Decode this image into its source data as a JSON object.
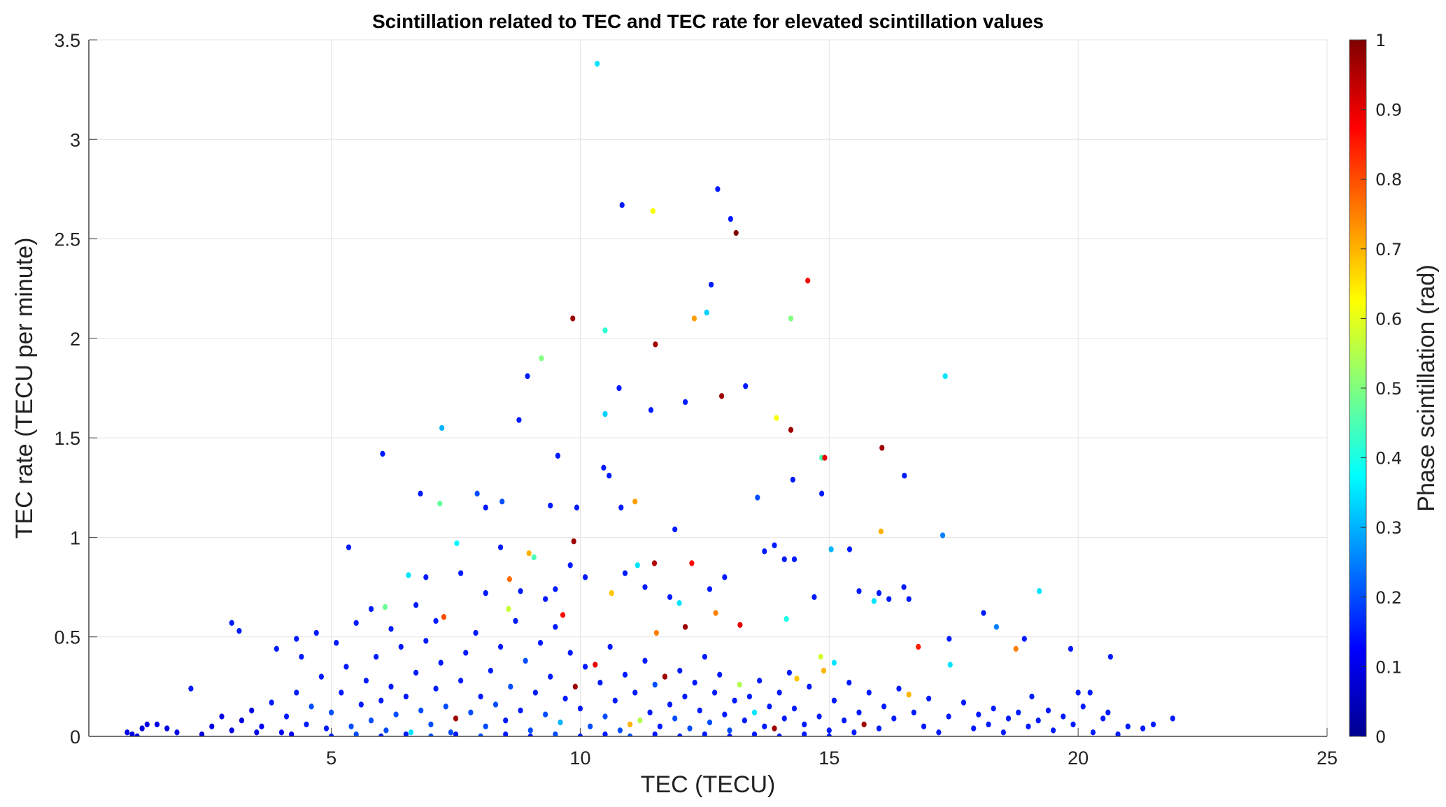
{
  "chart_data": {
    "type": "scatter",
    "title": "Scintillation related to TEC and TEC rate for elevated scintillation values",
    "xlabel": "TEC (TECU)",
    "ylabel": "TEC  rate (TECU per minute)",
    "xlim": [
      0.13,
      25
    ],
    "ylim": [
      0,
      3.5
    ],
    "xticks": [
      "5",
      "10",
      "15",
      "20",
      "25"
    ],
    "yticks": [
      "0",
      "0.5",
      "1",
      "1.5",
      "2",
      "2.5",
      "3",
      "3.5"
    ],
    "grid": true,
    "colorbar": {
      "label": "Phase scintillation (rad)",
      "colormap": "jet",
      "range": [
        0,
        1
      ],
      "ticks": [
        "0",
        "0.1",
        "0.2",
        "0.3",
        "0.4",
        "0.5",
        "0.6",
        "0.7",
        "0.8",
        "0.9",
        "1"
      ],
      "position": "right"
    },
    "point_format": [
      "TEC",
      "TEC rate",
      "phase scintillation"
    ],
    "points": [
      [
        10.34,
        3.38,
        0.35
      ],
      [
        10.84,
        2.67,
        0.15
      ],
      [
        11.46,
        2.64,
        0.62
      ],
      [
        12.76,
        2.75,
        0.15
      ],
      [
        13.02,
        2.6,
        0.15
      ],
      [
        13.13,
        2.53,
        1.0
      ],
      [
        12.63,
        2.27,
        0.15
      ],
      [
        14.57,
        2.29,
        0.88
      ],
      [
        9.85,
        2.1,
        0.97
      ],
      [
        10.5,
        2.04,
        0.42
      ],
      [
        12.29,
        2.1,
        0.72
      ],
      [
        12.54,
        2.13,
        0.33
      ],
      [
        14.23,
        2.1,
        0.5
      ],
      [
        11.51,
        1.97,
        0.97
      ],
      [
        9.22,
        1.9,
        0.5
      ],
      [
        8.94,
        1.81,
        0.15
      ],
      [
        17.33,
        1.81,
        0.35
      ],
      [
        10.78,
        1.75,
        0.15
      ],
      [
        13.32,
        1.76,
        0.15
      ],
      [
        12.84,
        1.71,
        0.97
      ],
      [
        12.11,
        1.68,
        0.15
      ],
      [
        11.42,
        1.64,
        0.15
      ],
      [
        10.5,
        1.62,
        0.33
      ],
      [
        13.94,
        1.6,
        0.62
      ],
      [
        8.77,
        1.59,
        0.15
      ],
      [
        7.22,
        1.55,
        0.3
      ],
      [
        14.23,
        1.54,
        0.97
      ],
      [
        16.06,
        1.45,
        0.97
      ],
      [
        6.03,
        1.42,
        0.15
      ],
      [
        9.55,
        1.41,
        0.15
      ],
      [
        14.91,
        1.4,
        0.9
      ],
      [
        14.85,
        1.4,
        0.45
      ],
      [
        10.47,
        1.35,
        0.15
      ],
      [
        16.51,
        1.31,
        0.15
      ],
      [
        10.58,
        1.31,
        0.15
      ],
      [
        14.27,
        1.29,
        0.15
      ],
      [
        6.79,
        1.22,
        0.15
      ],
      [
        7.93,
        1.22,
        0.2
      ],
      [
        14.85,
        1.22,
        0.15
      ],
      [
        11.1,
        1.18,
        0.72
      ],
      [
        8.43,
        1.18,
        0.2
      ],
      [
        7.18,
        1.17,
        0.47
      ],
      [
        9.4,
        1.16,
        0.15
      ],
      [
        9.93,
        1.15,
        0.15
      ],
      [
        10.82,
        1.15,
        0.15
      ],
      [
        8.1,
        1.15,
        0.15
      ],
      [
        13.56,
        1.2,
        0.2
      ],
      [
        16.04,
        1.03,
        0.7
      ],
      [
        11.9,
        1.04,
        0.15
      ],
      [
        17.28,
        1.01,
        0.25
      ],
      [
        9.87,
        0.98,
        0.97
      ],
      [
        7.52,
        0.97,
        0.37
      ],
      [
        5.35,
        0.95,
        0.15
      ],
      [
        15.04,
        0.94,
        0.3
      ],
      [
        15.41,
        0.94,
        0.15
      ],
      [
        8.97,
        0.92,
        0.7
      ],
      [
        9.07,
        0.9,
        0.45
      ],
      [
        11.49,
        0.87,
        0.95
      ],
      [
        12.24,
        0.87,
        0.87
      ],
      [
        11.15,
        0.86,
        0.35
      ],
      [
        6.55,
        0.81,
        0.35
      ],
      [
        8.58,
        0.79,
        0.77
      ],
      [
        10.63,
        0.72,
        0.68
      ],
      [
        19.22,
        0.73,
        0.35
      ],
      [
        8.56,
        0.64,
        0.57
      ],
      [
        6.08,
        0.65,
        0.48
      ],
      [
        7.26,
        0.6,
        0.8
      ],
      [
        9.65,
        0.61,
        0.87
      ],
      [
        12.72,
        0.62,
        0.75
      ],
      [
        11.99,
        0.67,
        0.35
      ],
      [
        14.14,
        0.59,
        0.4
      ],
      [
        12.11,
        0.55,
        0.97
      ],
      [
        13.21,
        0.56,
        0.9
      ],
      [
        18.36,
        0.55,
        0.25
      ],
      [
        11.53,
        0.52,
        0.75
      ],
      [
        16.79,
        0.45,
        0.85
      ],
      [
        18.75,
        0.44,
        0.75
      ],
      [
        19.85,
        0.44,
        0.15
      ],
      [
        20.65,
        0.4,
        0.15
      ],
      [
        14.83,
        0.4,
        0.58
      ],
      [
        3.0,
        0.57,
        0.15
      ],
      [
        3.15,
        0.53,
        0.15
      ],
      [
        18.1,
        0.62,
        0.15
      ],
      [
        17.41,
        0.49,
        0.15
      ],
      [
        18.92,
        0.49,
        0.15
      ],
      [
        21.9,
        0.09,
        0.15
      ],
      [
        2.18,
        0.24,
        0.15
      ],
      [
        21.51,
        0.06,
        0.15
      ],
      [
        15.1,
        0.37,
        0.35
      ],
      [
        17.43,
        0.36,
        0.35
      ],
      [
        14.89,
        0.33,
        0.7
      ],
      [
        14.35,
        0.29,
        0.68
      ],
      [
        20.0,
        0.22,
        0.15
      ],
      [
        20.24,
        0.22,
        0.15
      ],
      [
        19.07,
        0.2,
        0.15
      ],
      [
        9.8,
        0.86,
        0.15
      ],
      [
        10.1,
        0.8,
        0.15
      ],
      [
        8.4,
        0.95,
        0.15
      ],
      [
        7.6,
        0.82,
        0.15
      ],
      [
        6.9,
        0.8,
        0.15
      ],
      [
        12.9,
        0.8,
        0.15
      ],
      [
        13.7,
        0.93,
        0.15
      ],
      [
        13.9,
        0.96,
        0.15
      ],
      [
        14.1,
        0.89,
        0.15
      ],
      [
        14.3,
        0.89,
        0.15
      ],
      [
        12.6,
        0.74,
        0.15
      ],
      [
        11.8,
        0.7,
        0.15
      ],
      [
        11.3,
        0.75,
        0.15
      ],
      [
        10.9,
        0.82,
        0.15
      ],
      [
        15.6,
        0.73,
        0.15
      ],
      [
        16.2,
        0.69,
        0.15
      ],
      [
        16.5,
        0.75,
        0.15
      ],
      [
        15.9,
        0.68,
        0.35
      ],
      [
        16.0,
        0.72,
        0.15
      ],
      [
        16.6,
        0.69,
        0.15
      ],
      [
        14.7,
        0.7,
        0.15
      ],
      [
        5.8,
        0.64,
        0.15
      ],
      [
        6.7,
        0.66,
        0.15
      ],
      [
        7.1,
        0.58,
        0.15
      ],
      [
        8.1,
        0.72,
        0.15
      ],
      [
        8.8,
        0.73,
        0.15
      ],
      [
        9.3,
        0.69,
        0.15
      ],
      [
        9.5,
        0.74,
        0.15
      ],
      [
        4.7,
        0.52,
        0.15
      ],
      [
        5.5,
        0.57,
        0.15
      ],
      [
        4.3,
        0.49,
        0.15
      ],
      [
        3.9,
        0.44,
        0.15
      ],
      [
        4.4,
        0.4,
        0.15
      ],
      [
        5.1,
        0.47,
        0.15
      ],
      [
        6.2,
        0.54,
        0.15
      ],
      [
        0.9,
        0.02,
        0.1
      ],
      [
        1.0,
        0.01,
        0.1
      ],
      [
        1.2,
        0.04,
        0.1
      ],
      [
        1.3,
        0.06,
        0.1
      ],
      [
        1.5,
        0.06,
        0.1
      ],
      [
        1.7,
        0.04,
        0.1
      ],
      [
        1.9,
        0.02,
        0.1
      ],
      [
        1.1,
        0.0,
        0.1
      ],
      [
        2.4,
        0.01,
        0.1
      ],
      [
        2.6,
        0.05,
        0.1
      ],
      [
        2.8,
        0.1,
        0.1
      ],
      [
        3.0,
        0.03,
        0.1
      ],
      [
        3.2,
        0.08,
        0.1
      ],
      [
        3.4,
        0.13,
        0.1
      ],
      [
        3.6,
        0.05,
        0.12
      ],
      [
        3.8,
        0.17,
        0.15
      ],
      [
        4.0,
        0.02,
        0.12
      ],
      [
        4.1,
        0.1,
        0.15
      ],
      [
        4.3,
        0.22,
        0.15
      ],
      [
        4.5,
        0.06,
        0.15
      ],
      [
        4.6,
        0.15,
        0.2
      ],
      [
        4.8,
        0.3,
        0.15
      ],
      [
        4.9,
        0.04,
        0.15
      ],
      [
        5.0,
        0.12,
        0.2
      ],
      [
        5.2,
        0.22,
        0.15
      ],
      [
        5.3,
        0.35,
        0.15
      ],
      [
        5.4,
        0.05,
        0.2
      ],
      [
        5.6,
        0.16,
        0.15
      ],
      [
        5.7,
        0.28,
        0.15
      ],
      [
        5.8,
        0.08,
        0.2
      ],
      [
        5.9,
        0.4,
        0.15
      ],
      [
        6.0,
        0.18,
        0.15
      ],
      [
        6.1,
        0.03,
        0.2
      ],
      [
        6.2,
        0.25,
        0.15
      ],
      [
        6.3,
        0.11,
        0.2
      ],
      [
        6.4,
        0.45,
        0.15
      ],
      [
        6.5,
        0.2,
        0.15
      ],
      [
        6.6,
        0.02,
        0.35
      ],
      [
        6.7,
        0.32,
        0.15
      ],
      [
        6.8,
        0.13,
        0.2
      ],
      [
        6.9,
        0.48,
        0.15
      ],
      [
        7.0,
        0.06,
        0.2
      ],
      [
        7.1,
        0.24,
        0.15
      ],
      [
        7.2,
        0.37,
        0.15
      ],
      [
        7.3,
        0.15,
        0.2
      ],
      [
        7.4,
        0.02,
        0.2
      ],
      [
        7.5,
        0.09,
        0.97
      ],
      [
        7.6,
        0.28,
        0.15
      ],
      [
        7.7,
        0.42,
        0.15
      ],
      [
        7.8,
        0.12,
        0.2
      ],
      [
        7.9,
        0.52,
        0.15
      ],
      [
        8.0,
        0.2,
        0.15
      ],
      [
        8.1,
        0.05,
        0.2
      ],
      [
        8.2,
        0.33,
        0.15
      ],
      [
        8.3,
        0.16,
        0.2
      ],
      [
        8.4,
        0.45,
        0.15
      ],
      [
        8.5,
        0.08,
        0.15
      ],
      [
        8.6,
        0.25,
        0.2
      ],
      [
        8.7,
        0.58,
        0.15
      ],
      [
        8.8,
        0.13,
        0.15
      ],
      [
        8.9,
        0.38,
        0.2
      ],
      [
        9.0,
        0.03,
        0.2
      ],
      [
        9.1,
        0.22,
        0.15
      ],
      [
        9.2,
        0.47,
        0.15
      ],
      [
        9.3,
        0.11,
        0.2
      ],
      [
        9.4,
        0.3,
        0.15
      ],
      [
        9.5,
        0.55,
        0.15
      ],
      [
        9.6,
        0.07,
        0.3
      ],
      [
        9.7,
        0.19,
        0.15
      ],
      [
        9.8,
        0.42,
        0.15
      ],
      [
        9.9,
        0.25,
        0.97
      ],
      [
        10.0,
        0.14,
        0.15
      ],
      [
        10.1,
        0.35,
        0.15
      ],
      [
        10.2,
        0.05,
        0.2
      ],
      [
        10.3,
        0.36,
        0.9
      ],
      [
        10.4,
        0.27,
        0.15
      ],
      [
        10.5,
        0.1,
        0.2
      ],
      [
        10.6,
        0.45,
        0.15
      ],
      [
        10.7,
        0.18,
        0.15
      ],
      [
        10.8,
        0.03,
        0.2
      ],
      [
        10.9,
        0.31,
        0.15
      ],
      [
        11.0,
        0.06,
        0.7
      ],
      [
        11.1,
        0.22,
        0.15
      ],
      [
        11.2,
        0.08,
        0.55
      ],
      [
        11.3,
        0.38,
        0.15
      ],
      [
        11.4,
        0.12,
        0.15
      ],
      [
        11.5,
        0.26,
        0.2
      ],
      [
        11.6,
        0.05,
        0.15
      ],
      [
        11.7,
        0.3,
        0.97
      ],
      [
        11.8,
        0.16,
        0.15
      ],
      [
        11.9,
        0.09,
        0.2
      ],
      [
        12.0,
        0.33,
        0.15
      ],
      [
        12.1,
        0.2,
        0.15
      ],
      [
        12.2,
        0.04,
        0.2
      ],
      [
        12.3,
        0.27,
        0.15
      ],
      [
        12.4,
        0.13,
        0.15
      ],
      [
        12.5,
        0.4,
        0.15
      ],
      [
        12.6,
        0.07,
        0.2
      ],
      [
        12.7,
        0.22,
        0.15
      ],
      [
        12.8,
        0.31,
        0.15
      ],
      [
        12.9,
        0.11,
        0.15
      ],
      [
        13.0,
        0.03,
        0.2
      ],
      [
        13.1,
        0.18,
        0.15
      ],
      [
        13.2,
        0.26,
        0.55
      ],
      [
        13.3,
        0.08,
        0.15
      ],
      [
        13.4,
        0.2,
        0.15
      ],
      [
        13.5,
        0.12,
        0.35
      ],
      [
        13.6,
        0.28,
        0.15
      ],
      [
        13.7,
        0.05,
        0.15
      ],
      [
        13.8,
        0.15,
        0.15
      ],
      [
        13.9,
        0.04,
        0.97
      ],
      [
        14.0,
        0.22,
        0.15
      ],
      [
        14.1,
        0.09,
        0.15
      ],
      [
        14.2,
        0.32,
        0.15
      ],
      [
        14.3,
        0.14,
        0.15
      ],
      [
        14.5,
        0.06,
        0.15
      ],
      [
        14.6,
        0.25,
        0.15
      ],
      [
        14.8,
        0.1,
        0.15
      ],
      [
        15.0,
        0.03,
        0.15
      ],
      [
        15.1,
        0.18,
        0.15
      ],
      [
        15.3,
        0.08,
        0.15
      ],
      [
        15.4,
        0.27,
        0.15
      ],
      [
        15.6,
        0.12,
        0.15
      ],
      [
        15.7,
        0.06,
        0.97
      ],
      [
        15.8,
        0.22,
        0.15
      ],
      [
        16.0,
        0.04,
        0.15
      ],
      [
        16.1,
        0.15,
        0.15
      ],
      [
        16.3,
        0.09,
        0.15
      ],
      [
        16.4,
        0.24,
        0.15
      ],
      [
        16.6,
        0.21,
        0.7
      ],
      [
        16.7,
        0.12,
        0.15
      ],
      [
        16.9,
        0.05,
        0.15
      ],
      [
        17.0,
        0.19,
        0.15
      ],
      [
        17.2,
        0.02,
        0.15
      ],
      [
        17.4,
        0.1,
        0.15
      ],
      [
        17.7,
        0.17,
        0.15
      ],
      [
        17.9,
        0.04,
        0.15
      ],
      [
        18.0,
        0.11,
        0.15
      ],
      [
        18.2,
        0.06,
        0.15
      ],
      [
        18.3,
        0.14,
        0.15
      ],
      [
        18.5,
        0.02,
        0.15
      ],
      [
        18.6,
        0.09,
        0.15
      ],
      [
        18.8,
        0.12,
        0.15
      ],
      [
        19.0,
        0.05,
        0.15
      ],
      [
        19.2,
        0.08,
        0.15
      ],
      [
        19.4,
        0.13,
        0.15
      ],
      [
        19.5,
        0.03,
        0.15
      ],
      [
        19.7,
        0.1,
        0.15
      ],
      [
        19.9,
        0.06,
        0.15
      ],
      [
        20.1,
        0.15,
        0.15
      ],
      [
        20.3,
        0.02,
        0.15
      ],
      [
        20.5,
        0.09,
        0.15
      ],
      [
        20.6,
        0.12,
        0.15
      ],
      [
        20.8,
        0.01,
        0.15
      ],
      [
        21.0,
        0.05,
        0.15
      ],
      [
        21.3,
        0.04,
        0.15
      ],
      [
        3.5,
        0.02,
        0.1
      ],
      [
        4.2,
        0.01,
        0.12
      ],
      [
        5.0,
        0.0,
        0.15
      ],
      [
        5.5,
        0.01,
        0.2
      ],
      [
        6.0,
        0.0,
        0.15
      ],
      [
        6.5,
        0.01,
        0.15
      ],
      [
        7.0,
        0.0,
        0.2
      ],
      [
        7.5,
        0.01,
        0.15
      ],
      [
        8.0,
        0.0,
        0.2
      ],
      [
        8.5,
        0.01,
        0.15
      ],
      [
        9.0,
        0.0,
        0.15
      ],
      [
        9.5,
        0.01,
        0.2
      ],
      [
        10.0,
        0.0,
        0.15
      ],
      [
        10.5,
        0.01,
        0.15
      ],
      [
        11.0,
        0.0,
        0.2
      ],
      [
        11.5,
        0.01,
        0.15
      ],
      [
        12.0,
        0.0,
        0.15
      ],
      [
        12.5,
        0.01,
        0.15
      ],
      [
        13.0,
        0.0,
        0.15
      ],
      [
        13.5,
        0.01,
        0.15
      ],
      [
        14.0,
        0.0,
        0.15
      ],
      [
        14.5,
        0.01,
        0.15
      ],
      [
        15.0,
        0.0,
        0.15
      ],
      [
        15.5,
        0.02,
        0.15
      ]
    ]
  }
}
